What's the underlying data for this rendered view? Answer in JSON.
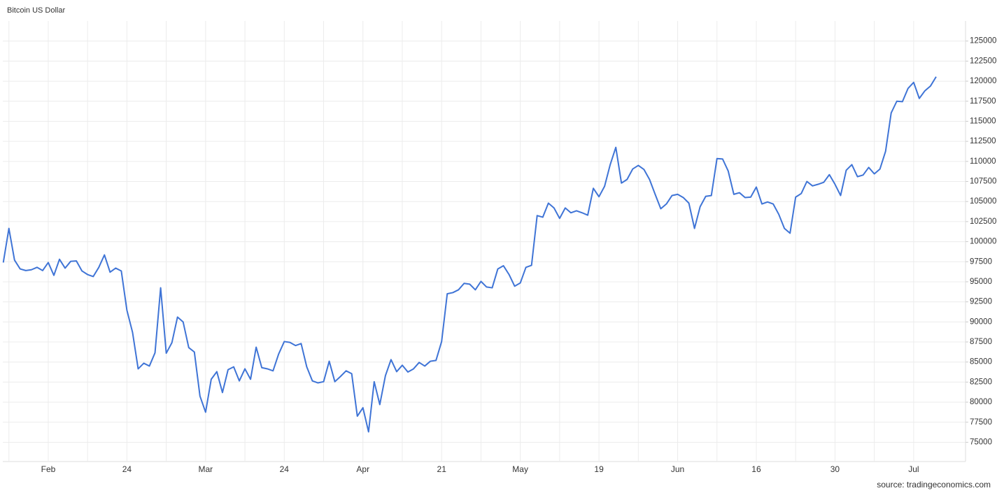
{
  "chart_data": {
    "type": "line",
    "title": "Bitcoin US Dollar",
    "source": "source: tradingeconomics.com",
    "categories": [
      null,
      null,
      null,
      null,
      null,
      null,
      null,
      null,
      "Feb",
      null,
      null,
      null,
      null,
      null,
      null,
      null,
      null,
      null,
      null,
      null,
      null,
      null,
      "24",
      null,
      null,
      null,
      null,
      null,
      null,
      null,
      null,
      null,
      null,
      null,
      null,
      null,
      "Mar",
      null,
      null,
      null,
      null,
      null,
      null,
      null,
      null,
      null,
      null,
      null,
      null,
      null,
      "24",
      null,
      null,
      null,
      null,
      null,
      null,
      null,
      null,
      null,
      null,
      null,
      null,
      null,
      "Apr",
      null,
      null,
      null,
      null,
      null,
      null,
      null,
      null,
      null,
      null,
      null,
      null,
      null,
      "21",
      null,
      null,
      null,
      null,
      null,
      null,
      null,
      null,
      null,
      null,
      null,
      null,
      null,
      "May",
      null,
      null,
      null,
      null,
      null,
      null,
      null,
      null,
      null,
      null,
      null,
      null,
      null,
      "19",
      null,
      null,
      null,
      null,
      null,
      null,
      null,
      null,
      null,
      null,
      null,
      null,
      null,
      "Jun",
      null,
      null,
      null,
      null,
      null,
      null,
      null,
      null,
      null,
      null,
      null,
      null,
      null,
      "16",
      null,
      null,
      null,
      null,
      null,
      null,
      null,
      null,
      null,
      null,
      null,
      null,
      null,
      "30",
      null,
      null,
      null,
      null,
      null,
      null,
      null,
      null,
      null,
      null,
      null,
      null,
      null,
      "Jul",
      null,
      null,
      null,
      null
    ],
    "series": [
      {
        "name": "Bitcoin US Dollar",
        "color": "#3f74d6",
        "values": [
          97400,
          101650,
          97700,
          96600,
          96400,
          96500,
          96800,
          96400,
          97400,
          95800,
          97800,
          96700,
          97550,
          97600,
          96350,
          95900,
          95650,
          96800,
          98350,
          96200,
          96700,
          96350,
          91450,
          88700,
          84150,
          84850,
          84500,
          86150,
          94250,
          86100,
          87400,
          90600,
          90000,
          86800,
          86250,
          80750,
          78750,
          82850,
          83800,
          81200,
          84050,
          84400,
          82650,
          84150,
          82850,
          86850,
          84300,
          84150,
          83900,
          86000,
          87550,
          87450,
          87050,
          87300,
          84400,
          82650,
          82400,
          82550,
          85100,
          82550,
          83200,
          83900,
          83550,
          78250,
          79300,
          76300,
          82550,
          79700,
          83300,
          85300,
          83800,
          84600,
          83750,
          84150,
          84950,
          84500,
          85100,
          85200,
          87550,
          93500,
          93650,
          94000,
          94800,
          94700,
          94000,
          95050,
          94350,
          94250,
          96600,
          97000,
          95900,
          94450,
          94850,
          96800,
          97050,
          103250,
          103050,
          104800,
          104200,
          102900,
          104200,
          103600,
          103850,
          103600,
          103300,
          106650,
          105600,
          106900,
          109600,
          111750,
          107300,
          107750,
          109050,
          109500,
          109000,
          107750,
          105900,
          104100,
          104700,
          105750,
          105900,
          105500,
          104800,
          101650,
          104350,
          105650,
          105750,
          110350,
          110300,
          108800,
          105900,
          106100,
          105500,
          105550,
          106800,
          104700,
          104950,
          104700,
          103400,
          101650,
          101050,
          105550,
          106000,
          107500,
          106950,
          107150,
          107400,
          108350,
          107150,
          105750,
          108900,
          109600,
          108100,
          108300,
          109250,
          108450,
          109050,
          111250,
          116050,
          117500,
          117450,
          119100,
          119850,
          117850,
          118800,
          119400,
          120550
        ]
      }
    ],
    "ylim": [
      72600,
      127500
    ],
    "yticks": [
      75000,
      77500,
      80000,
      82500,
      85000,
      87500,
      90000,
      92500,
      95000,
      97500,
      100000,
      102500,
      105000,
      107500,
      110000,
      112500,
      115000,
      117500,
      120000,
      122500,
      125000
    ],
    "grid": true
  }
}
